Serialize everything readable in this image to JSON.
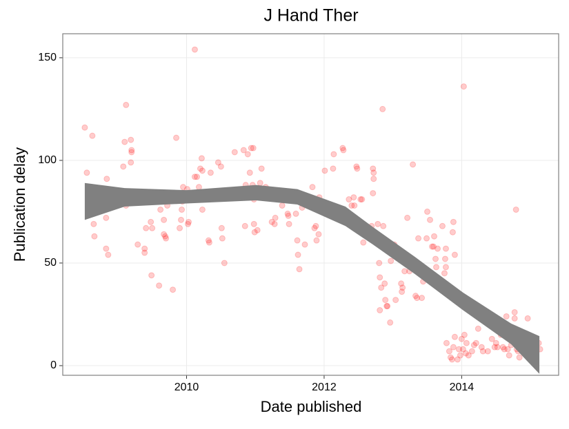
{
  "chart_data": {
    "type": "scatter",
    "title": "J Hand Ther",
    "x_label": "Date published",
    "y_label": "Publication delay",
    "xlim": [
      2008.2,
      2015.41
    ],
    "xticks": [
      2010,
      2012,
      2014
    ],
    "ylim": [
      -4.7,
      161.7
    ],
    "yticks": [
      0,
      50,
      100,
      150
    ],
    "grid": true,
    "points": {
      "color": "#ff0000",
      "alpha": 0.2,
      "x": [
        2008.52,
        2008.55,
        2008.63,
        2008.66,
        2008.67,
        2008.65,
        2008.66,
        2008.81,
        2008.84,
        2008.83,
        2008.83,
        2008.86,
        2009.12,
        2009.1,
        2009.08,
        2009.19,
        2009.2,
        2009.2,
        2009.19,
        2009.11,
        2009.12,
        2009.2,
        2009.29,
        2009.39,
        2009.39,
        2009.41,
        2009.48,
        2009.5,
        2009.49,
        2009.6,
        2009.62,
        2009.67,
        2009.67,
        2009.69,
        2009.7,
        2009.72,
        2009.8,
        2009.85,
        2009.9,
        2009.92,
        2009.93,
        2009.94,
        2009.95,
        2010.01,
        2010.02,
        2010.03,
        2010.12,
        2010.15,
        2010.18,
        2010.2,
        2010.22,
        2010.23,
        2010.23,
        2010.3,
        2010.32,
        2010.33,
        2010.35,
        2010.46,
        2010.51,
        2010.52,
        2010.55,
        2010.5,
        2010.68,
        2010.7,
        2010.81,
        2010.83,
        2010.85,
        2010.86,
        2010.89,
        2010.92,
        2010.94,
        2010.97,
        2010.96,
        2010.98,
        2010.98,
        2010.99,
        2011.03,
        2011.07,
        2011.09,
        2011.12,
        2011.15,
        2011.16,
        2011.19,
        2011.22,
        2011.24,
        2011.29,
        2011.28,
        2011.39,
        2011.47,
        2011.48,
        2011.49,
        2011.59,
        2011.61,
        2011.61,
        2011.62,
        2011.64,
        2011.68,
        2011.72,
        2011.83,
        2011.86,
        2011.88,
        2011.89,
        2011.92,
        2011.93,
        2012.01,
        2012.13,
        2012.14,
        2012.27,
        2012.28,
        2012.36,
        2012.4,
        2012.43,
        2012.44,
        2012.47,
        2012.48,
        2012.53,
        2012.55,
        2012.57,
        2012.69,
        2012.71,
        2012.72,
        2012.72,
        2012.71,
        2012.75,
        2012.78,
        2012.8,
        2012.81,
        2012.81,
        2012.83,
        2012.85,
        2012.86,
        2012.88,
        2012.89,
        2012.91,
        2012.92,
        2012.96,
        2012.97,
        2013.02,
        2013.04,
        2013.12,
        2013.13,
        2013.14,
        2013.17,
        2013.21,
        2013.24,
        2013.29,
        2013.33,
        2013.35,
        2013.37,
        2013.42,
        2013.44,
        2013.44,
        2013.5,
        2013.49,
        2013.51,
        2013.54,
        2013.57,
        2013.59,
        2013.6,
        2013.62,
        2013.63,
        2013.65,
        2013.72,
        2013.73,
        2013.75,
        2013.77,
        2013.76,
        2013.77,
        2013.82,
        2013.87,
        2013.88,
        2013.9,
        2013.95,
        2013.78,
        2013.82,
        2013.84,
        2013.86,
        2013.88,
        2013.9,
        2013.94,
        2013.96,
        2013.98,
        2014.0,
        2014.02,
        2014.03,
        2014.04,
        2014.06,
        2014.07,
        2014.1,
        2014.15,
        2014.18,
        2014.21,
        2014.24,
        2014.29,
        2014.31,
        2014.38,
        2014.44,
        2014.48,
        2014.5,
        2014.52,
        2014.57,
        2014.6,
        2014.62,
        2014.65,
        2014.67,
        2014.69,
        2014.72,
        2014.74,
        2014.77,
        2014.77,
        2014.79,
        2014.8,
        2014.82,
        2014.84,
        2014.89,
        2014.92,
        2014.96,
        2014.98,
        2015.0,
        2015.04,
        2015.08,
        2015.12,
        2015.14,
        2010.12
      ],
      "y": [
        116,
        94,
        112,
        77.5,
        76,
        69,
        63,
        81,
        91,
        72,
        57,
        54,
        127,
        109,
        97,
        110,
        105,
        104,
        99,
        80,
        78,
        83,
        59,
        57,
        55,
        67,
        70,
        67,
        44,
        39,
        76,
        71,
        64,
        63,
        62,
        78,
        37,
        111,
        67,
        71,
        76,
        80,
        87,
        86,
        69,
        70,
        92,
        92,
        87,
        96,
        101,
        76,
        95,
        83,
        61,
        60,
        94,
        99,
        67,
        62,
        50,
        97,
        82,
        104,
        82,
        105,
        68,
        88,
        103,
        94,
        106,
        106,
        88,
        81,
        69,
        65,
        66,
        89,
        96,
        83,
        87,
        82,
        86,
        82,
        70,
        72,
        69,
        78,
        74,
        73,
        69,
        74,
        81,
        61,
        54,
        47,
        77,
        59,
        87,
        67,
        68,
        61,
        64,
        82,
        95,
        96,
        103,
        106,
        105,
        81,
        78,
        82,
        78,
        97,
        96,
        81,
        81,
        60,
        68,
        96,
        94,
        91,
        84,
        62,
        69,
        50,
        43,
        27,
        38,
        125,
        68,
        40,
        32,
        29,
        29,
        21,
        51,
        59,
        32,
        40,
        36,
        38,
        46,
        72,
        46,
        98,
        34,
        33,
        62,
        33,
        41,
        46,
        75,
        62,
        42,
        71,
        58,
        58,
        63,
        52,
        48,
        57,
        68,
        41,
        45,
        57,
        52,
        48,
        38,
        65,
        70,
        54,
        34,
        11,
        7,
        4,
        3,
        9,
        14,
        3,
        8,
        5,
        13,
        8,
        136,
        15,
        6,
        11,
        5,
        7,
        10,
        11,
        18,
        9,
        7,
        7,
        13,
        9,
        11,
        9,
        15,
        9,
        8,
        24,
        8,
        5,
        10,
        13,
        23,
        26,
        76,
        8,
        7,
        4,
        10,
        8,
        23,
        8,
        14,
        9,
        10,
        11,
        8,
        154
      ]
    },
    "band": {
      "color": "#808080",
      "x": [
        2008.52,
        2009.1,
        2010,
        2011.01,
        2011.61,
        2012.31,
        2012.71,
        2013.32,
        2014.02,
        2014.72,
        2015.13
      ],
      "lower": [
        71,
        77.5,
        79,
        80.5,
        78.5,
        68,
        59,
        44.6,
        27,
        10.4,
        -4
      ],
      "upper": [
        89,
        86.5,
        85.5,
        88,
        86,
        77.5,
        67.5,
        53,
        35.6,
        20.5,
        14.4
      ]
    }
  }
}
